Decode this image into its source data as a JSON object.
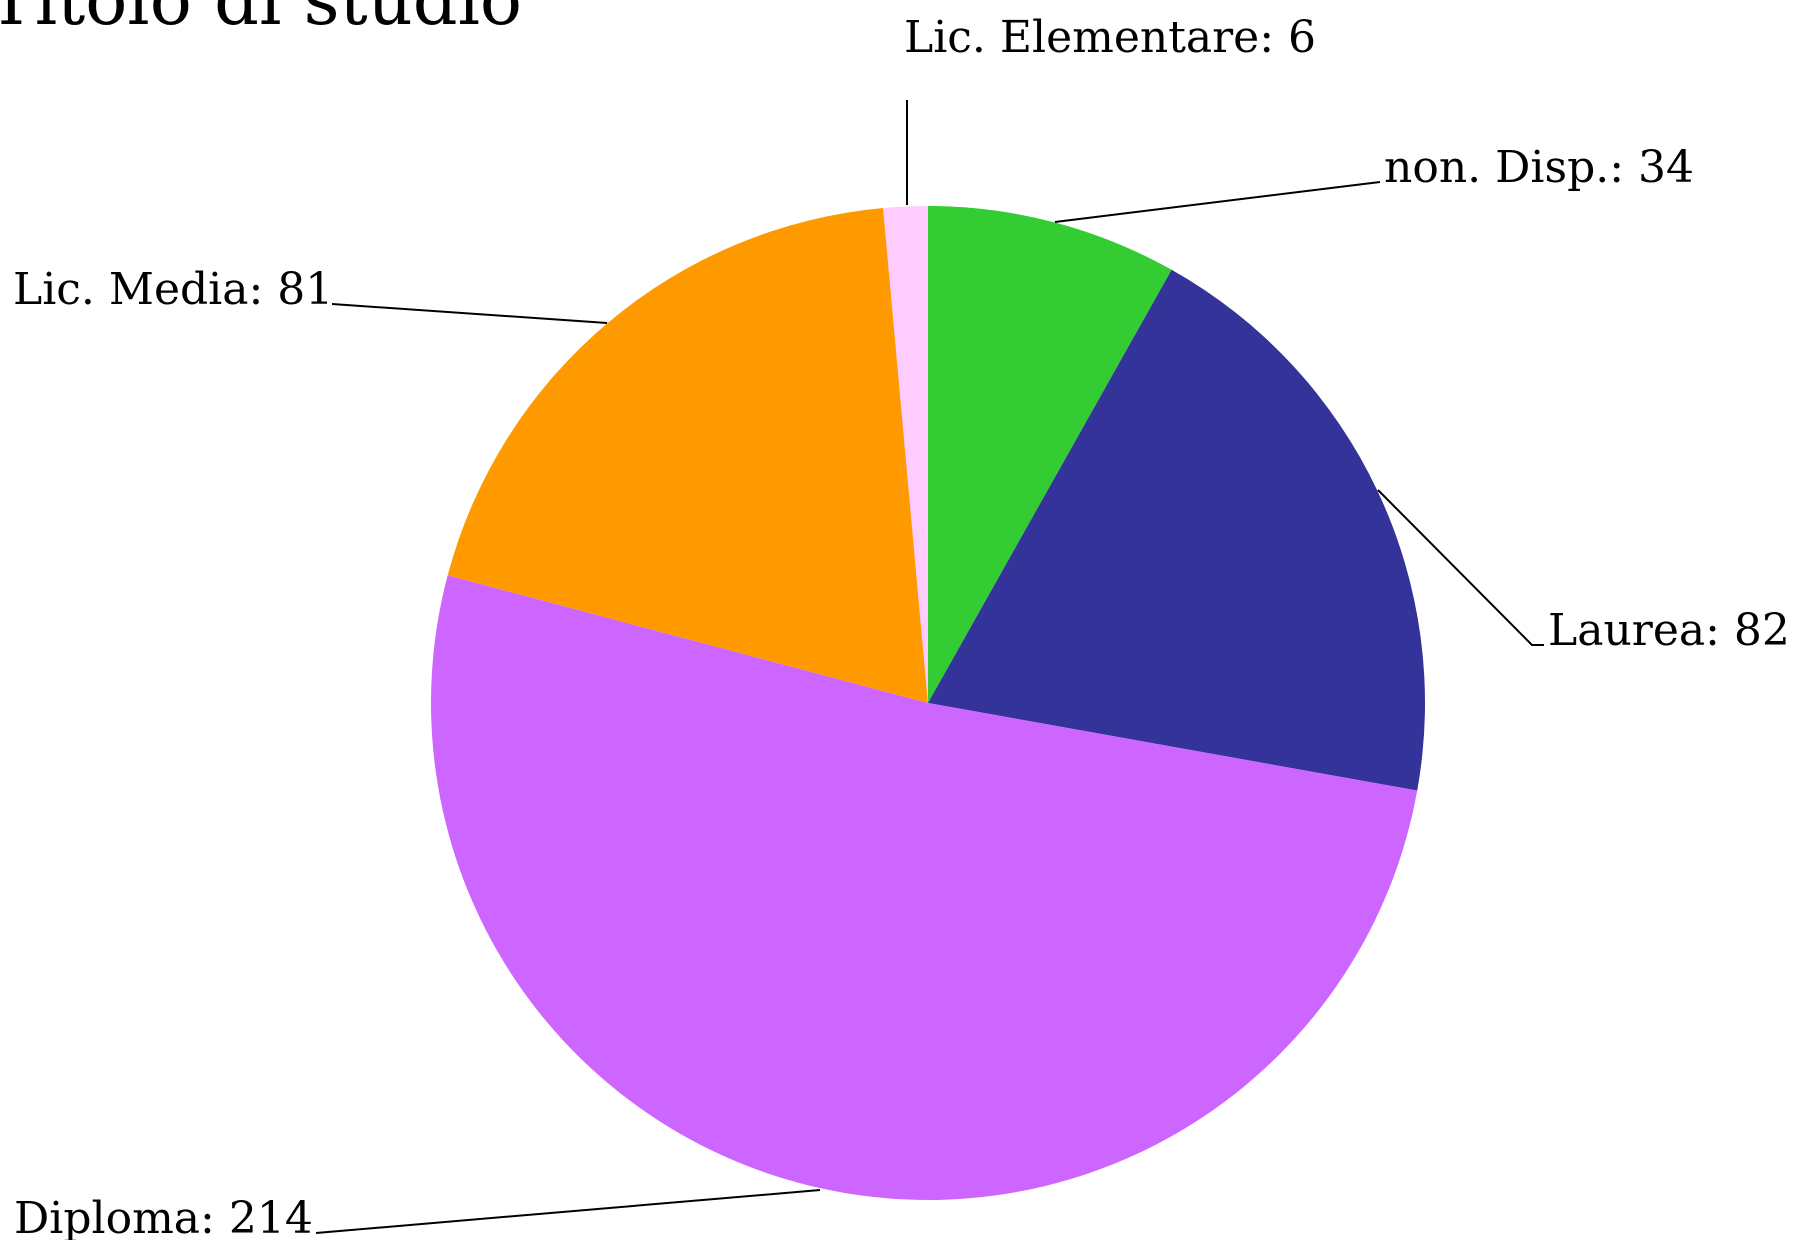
{
  "chart_data": {
    "type": "pie",
    "title": "Titolo di studio",
    "start": "top",
    "direction": "clockwise",
    "slices": [
      {
        "name": "non. Disp.",
        "value": 34,
        "color": "#33CC33",
        "label": "non. Disp.: 34"
      },
      {
        "name": "Laurea",
        "value": 82,
        "color": "#333399",
        "label": "Laurea: 82"
      },
      {
        "name": "Diploma",
        "value": 214,
        "color": "#CC66FF",
        "label": "Diploma: 214"
      },
      {
        "name": "Lic. Media",
        "value": 81,
        "color": "#FF9900",
        "label": "Lic. Media: 81"
      },
      {
        "name": "Lic. Elementare",
        "value": 6,
        "color": "#FFCCFF",
        "label": "Lic. Elementare: 6"
      }
    ]
  }
}
